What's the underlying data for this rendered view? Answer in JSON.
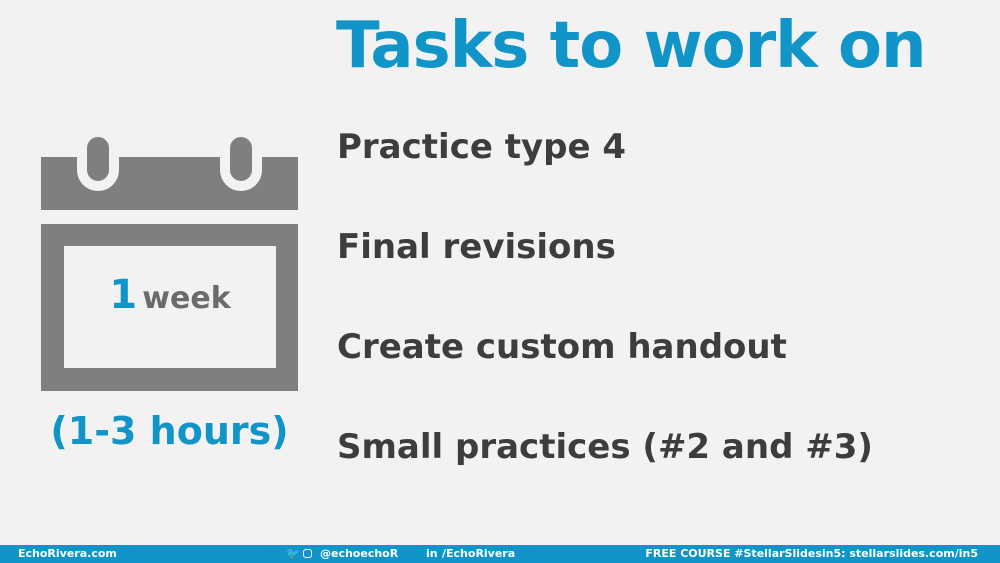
{
  "title": "Tasks to work on",
  "tasks": [
    "Practice type 4",
    "Final revisions",
    "Create custom handout",
    "Small practices (#2 and #3)"
  ],
  "calendar": {
    "icon": "calendar-icon",
    "number": "1",
    "unit": "week",
    "hours": "(1-3 hours)"
  },
  "footer": {
    "site": "EchoRivera.com",
    "twitter_icon": "twitter-icon",
    "instagram_icon": "instagram-icon",
    "handle": "@echoechoR",
    "linkedin_icon": "linkedin-icon",
    "linkedin": "/EchoRivera",
    "course": "FREE COURSE #StellarSlidesin5: stellarslides.com/in5"
  },
  "colors": {
    "accent": "#1195c9",
    "text": "#3d3d3d",
    "calendar": "#7f7f7f",
    "background": "#f2f2f2"
  }
}
